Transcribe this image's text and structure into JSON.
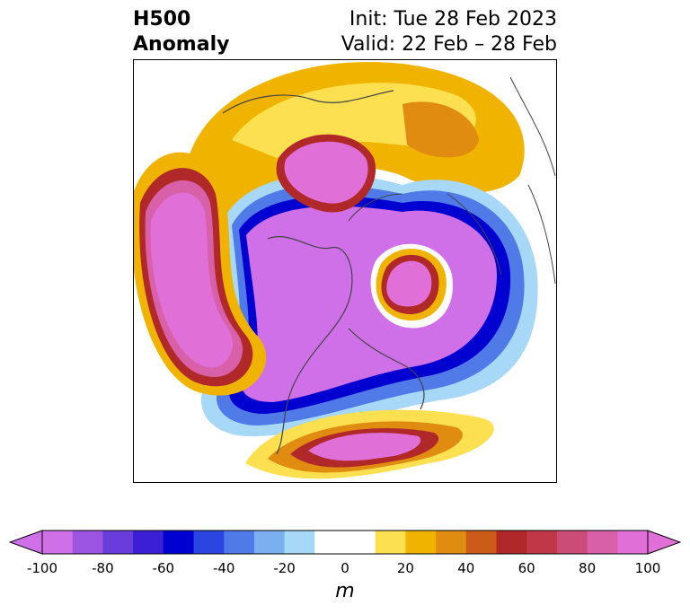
{
  "title": {
    "line1": "H500",
    "line2": "Anomaly"
  },
  "subtitle": {
    "init": "Init: Tue 28 Feb 2023",
    "valid": "Valid: 22 Feb – 28 Feb"
  },
  "colorbar": {
    "unit": "m",
    "ticks": [
      "-100",
      "-80",
      "-60",
      "-40",
      "-20",
      "0",
      "20",
      "40",
      "60",
      "80",
      "100"
    ],
    "tick_values": [
      -100,
      -80,
      -60,
      -40,
      -20,
      0,
      20,
      40,
      60,
      80,
      100
    ],
    "extend": "both",
    "colors": [
      "#d070e8",
      "#9b55e0",
      "#6a3cdc",
      "#3a1fd6",
      "#0000d0",
      "#2a45e0",
      "#4f7ae8",
      "#7ab0f0",
      "#a8d8f8",
      "#ffffff",
      "#ffffff",
      "#fce050",
      "#f0b400",
      "#e08c10",
      "#cc5a18",
      "#b02828",
      "#c03848",
      "#cc4c78",
      "#d860a8",
      "#e070d8"
    ],
    "under_color": "#d070e8",
    "over_color": "#e070d8"
  },
  "map": {
    "projection": "north-polar-stereographic",
    "variable": "500 hPa geopotential height anomaly"
  }
}
